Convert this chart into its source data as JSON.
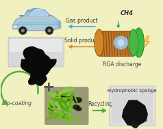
{
  "bg_color": "#f0f0c0",
  "labels": {
    "ch4": "CH4",
    "gas_product": "Gas product",
    "solid_product": "Solid product",
    "rga_discharge": "RGA discharge",
    "dip_coating": "Dip-coating",
    "recycling": "Recycling",
    "hydrophobic_sponge": "Hydrophobic sponge"
  },
  "arrow_colors": {
    "blue": "#60a8d0",
    "orange": "#d89030",
    "green": "#50b040",
    "teal": "#30a878"
  },
  "font_size": 5.5,
  "fig_width": 2.38,
  "fig_height": 1.89,
  "dpi": 100
}
